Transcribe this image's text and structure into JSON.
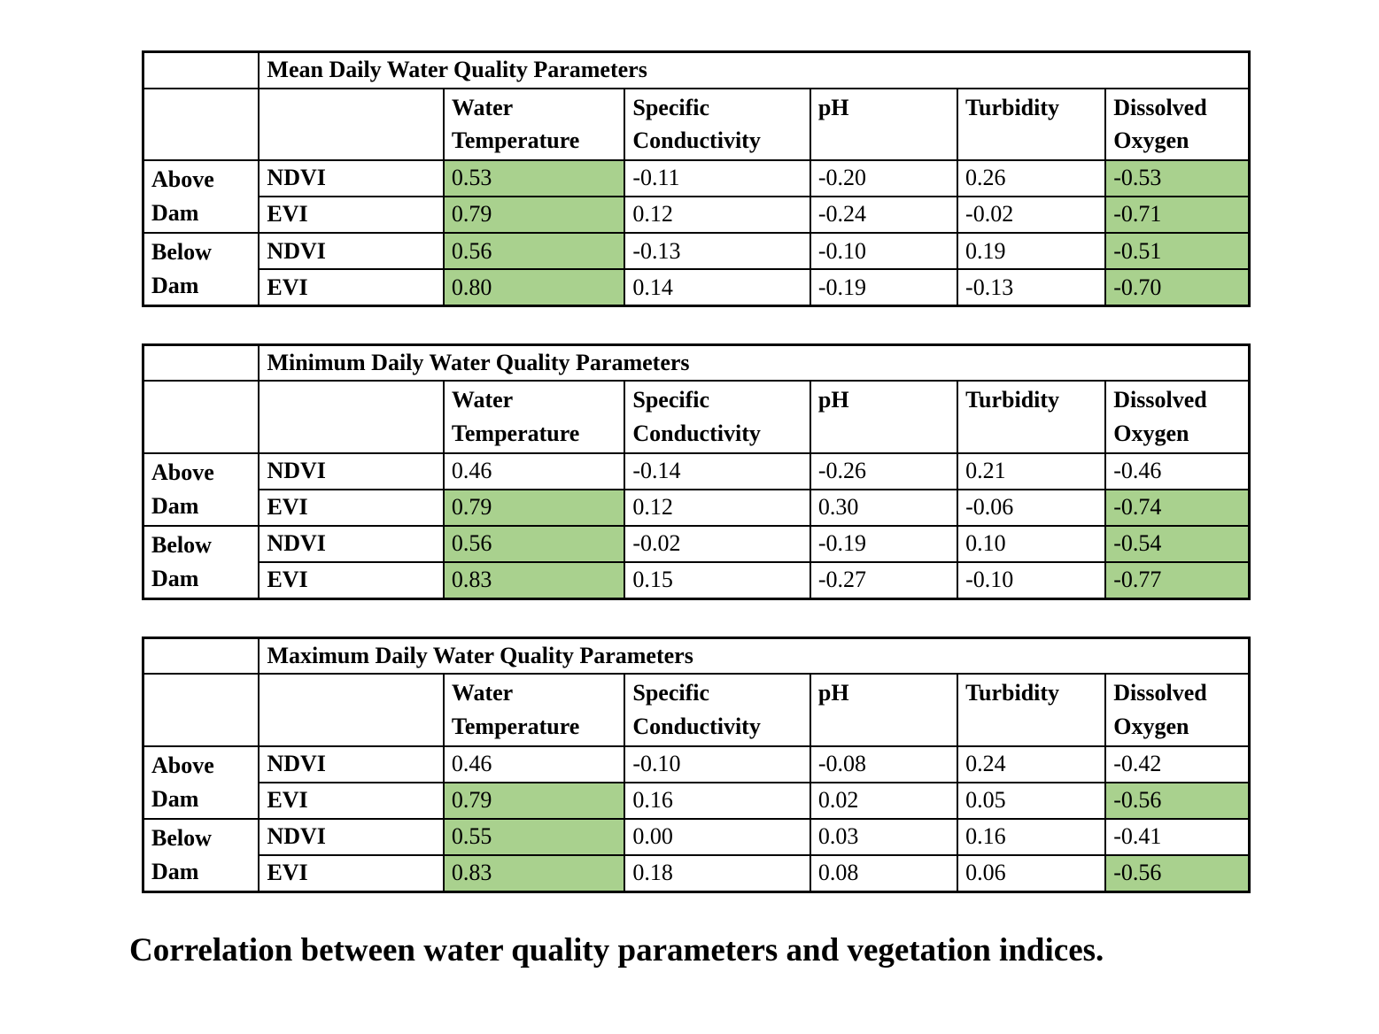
{
  "highlight_color": "#a9d18e",
  "caption": "Correlation between water quality parameters and vegetation indices.",
  "tables": [
    {
      "title": "Mean Daily Water Quality Parameters",
      "column_headers": [
        "Water Temperature",
        "Specific Conductivity",
        "pH",
        "Turbidity",
        "Dissolved Oxygen"
      ],
      "row_groups": [
        {
          "label": "Above Dam",
          "rows": [
            {
              "index": "NDVI",
              "cells": [
                {
                  "value": "0.53",
                  "highlight": true
                },
                {
                  "value": "-0.11",
                  "highlight": false
                },
                {
                  "value": "-0.20",
                  "highlight": false
                },
                {
                  "value": "0.26",
                  "highlight": false
                },
                {
                  "value": "-0.53",
                  "highlight": true
                }
              ]
            },
            {
              "index": "EVI",
              "cells": [
                {
                  "value": "0.79",
                  "highlight": true
                },
                {
                  "value": "0.12",
                  "highlight": false
                },
                {
                  "value": "-0.24",
                  "highlight": false
                },
                {
                  "value": "-0.02",
                  "highlight": false
                },
                {
                  "value": "-0.71",
                  "highlight": true
                }
              ]
            }
          ]
        },
        {
          "label": "Below Dam",
          "rows": [
            {
              "index": "NDVI",
              "cells": [
                {
                  "value": "0.56",
                  "highlight": true
                },
                {
                  "value": "-0.13",
                  "highlight": false
                },
                {
                  "value": "-0.10",
                  "highlight": false
                },
                {
                  "value": "0.19",
                  "highlight": false
                },
                {
                  "value": "-0.51",
                  "highlight": true
                }
              ]
            },
            {
              "index": "EVI",
              "cells": [
                {
                  "value": "0.80",
                  "highlight": true
                },
                {
                  "value": "0.14",
                  "highlight": false
                },
                {
                  "value": "-0.19",
                  "highlight": false
                },
                {
                  "value": "-0.13",
                  "highlight": false
                },
                {
                  "value": "-0.70",
                  "highlight": true
                }
              ]
            }
          ]
        }
      ]
    },
    {
      "title": "Minimum Daily Water Quality Parameters",
      "column_headers": [
        "Water Temperature",
        "Specific Conductivity",
        "pH",
        "Turbidity",
        "Dissolved Oxygen"
      ],
      "row_groups": [
        {
          "label": "Above Dam",
          "rows": [
            {
              "index": "NDVI",
              "cells": [
                {
                  "value": "0.46",
                  "highlight": false
                },
                {
                  "value": "-0.14",
                  "highlight": false
                },
                {
                  "value": "-0.26",
                  "highlight": false
                },
                {
                  "value": "0.21",
                  "highlight": false
                },
                {
                  "value": "-0.46",
                  "highlight": false
                }
              ]
            },
            {
              "index": "EVI",
              "cells": [
                {
                  "value": "0.79",
                  "highlight": true
                },
                {
                  "value": "0.12",
                  "highlight": false
                },
                {
                  "value": "0.30",
                  "highlight": false
                },
                {
                  "value": "-0.06",
                  "highlight": false
                },
                {
                  "value": "-0.74",
                  "highlight": true
                }
              ]
            }
          ]
        },
        {
          "label": "Below Dam",
          "rows": [
            {
              "index": "NDVI",
              "cells": [
                {
                  "value": "0.56",
                  "highlight": true
                },
                {
                  "value": "-0.02",
                  "highlight": false
                },
                {
                  "value": "-0.19",
                  "highlight": false
                },
                {
                  "value": "0.10",
                  "highlight": false
                },
                {
                  "value": "-0.54",
                  "highlight": true
                }
              ]
            },
            {
              "index": "EVI",
              "cells": [
                {
                  "value": "0.83",
                  "highlight": true
                },
                {
                  "value": "0.15",
                  "highlight": false
                },
                {
                  "value": "-0.27",
                  "highlight": false
                },
                {
                  "value": "-0.10",
                  "highlight": false
                },
                {
                  "value": "-0.77",
                  "highlight": true
                }
              ]
            }
          ]
        }
      ]
    },
    {
      "title": "Maximum Daily Water Quality Parameters",
      "column_headers": [
        "Water Temperature",
        "Specific Conductivity",
        "pH",
        "Turbidity",
        "Dissolved Oxygen"
      ],
      "row_groups": [
        {
          "label": "Above Dam",
          "rows": [
            {
              "index": "NDVI",
              "cells": [
                {
                  "value": "0.46",
                  "highlight": false
                },
                {
                  "value": "-0.10",
                  "highlight": false
                },
                {
                  "value": "-0.08",
                  "highlight": false
                },
                {
                  "value": "0.24",
                  "highlight": false
                },
                {
                  "value": "-0.42",
                  "highlight": false
                }
              ]
            },
            {
              "index": "EVI",
              "cells": [
                {
                  "value": "0.79",
                  "highlight": true
                },
                {
                  "value": "0.16",
                  "highlight": false
                },
                {
                  "value": "0.02",
                  "highlight": false
                },
                {
                  "value": "0.05",
                  "highlight": false
                },
                {
                  "value": "-0.56",
                  "highlight": true
                }
              ]
            }
          ]
        },
        {
          "label": "Below Dam",
          "rows": [
            {
              "index": "NDVI",
              "cells": [
                {
                  "value": "0.55",
                  "highlight": true
                },
                {
                  "value": "0.00",
                  "highlight": false
                },
                {
                  "value": "0.03",
                  "highlight": false
                },
                {
                  "value": "0.16",
                  "highlight": false
                },
                {
                  "value": "-0.41",
                  "highlight": false
                }
              ]
            },
            {
              "index": "EVI",
              "cells": [
                {
                  "value": "0.83",
                  "highlight": true
                },
                {
                  "value": "0.18",
                  "highlight": false
                },
                {
                  "value": "0.08",
                  "highlight": false
                },
                {
                  "value": "0.06",
                  "highlight": false
                },
                {
                  "value": "-0.56",
                  "highlight": true
                }
              ]
            }
          ]
        }
      ]
    }
  ]
}
